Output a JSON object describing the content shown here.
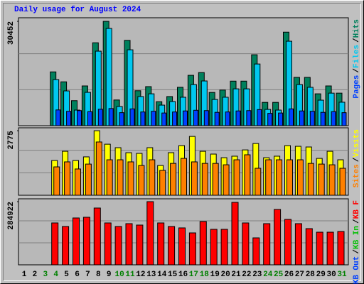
{
  "chart_data": [
    {
      "type": "bar",
      "title": "Daily usage for August 2024",
      "legend_separator": "/",
      "ylim": [
        0,
        31500
      ],
      "yticks": [
        30452
      ],
      "series": [
        {
          "name": "Hits",
          "color": "#00805c",
          "values": [
            null,
            null,
            null,
            15700,
            12800,
            7300,
            11600,
            24200,
            30452,
            7500,
            24900,
            10200,
            11400,
            7000,
            8500,
            11200,
            14700,
            15500,
            9700,
            10400,
            13000,
            13000,
            20700,
            6800,
            6800,
            27300,
            14100,
            14100,
            9300,
            11600,
            9500
          ]
        },
        {
          "name": "Files",
          "color": "#00c8f0",
          "values": [
            null,
            null,
            null,
            13450,
            10150,
            4550,
            9730,
            21750,
            28380,
            5600,
            22150,
            8500,
            9300,
            6000,
            7050,
            8300,
            12000,
            13050,
            7650,
            8300,
            10750,
            10750,
            18000,
            4750,
            4550,
            24650,
            12000,
            11200,
            7450,
            9500,
            6850
          ]
        },
        {
          "name": "Pages",
          "color": "#0040ff",
          "values": [
            null,
            null,
            null,
            4600,
            4200,
            4400,
            4100,
            4800,
            5000,
            3800,
            4900,
            4000,
            4200,
            3700,
            4000,
            4300,
            4500,
            4400,
            3900,
            4000,
            4300,
            4400,
            4700,
            3600,
            3700,
            4900,
            4300,
            4200,
            3900,
            4100,
            3800
          ]
        }
      ]
    },
    {
      "type": "bar",
      "legend_separator": "/",
      "ylim": [
        0,
        2900
      ],
      "yticks": [
        2775
      ],
      "series": [
        {
          "name": "Visits",
          "color": "#ffff00",
          "values": [
            null,
            null,
            null,
            1495,
            1890,
            1495,
            1650,
            2775,
            2195,
            2045,
            1830,
            1800,
            2045,
            1280,
            1830,
            2135,
            2530,
            1890,
            1770,
            1615,
            1680,
            1950,
            2225,
            1615,
            1680,
            2135,
            2105,
            2075,
            1585,
            1890,
            1525
          ]
        },
        {
          "name": "Sites",
          "color": "#ff8000",
          "values": [
            null,
            null,
            null,
            1220,
            1435,
            1130,
            1340,
            2290,
            1525,
            1525,
            1435,
            1280,
            1525,
            1070,
            1370,
            1585,
            1435,
            1370,
            1370,
            1310,
            1525,
            1740,
            1160,
            1525,
            1525,
            1525,
            1525,
            1370,
            1340,
            1310,
            1160
          ]
        }
      ]
    },
    {
      "type": "bar",
      "legend_separator": "/",
      "ylim": [
        0,
        297700
      ],
      "yticks": [
        284922
      ],
      "categories": [
        "1",
        "2",
        "3",
        "4",
        "5",
        "6",
        "7",
        "8",
        "9",
        "10",
        "11",
        "12",
        "13",
        "14",
        "15",
        "16",
        "17",
        "18",
        "19",
        "20",
        "21",
        "22",
        "23",
        "24",
        "25",
        "26",
        "27",
        "28",
        "29",
        "30",
        "31"
      ],
      "category_colors": [
        "#000000",
        "#000000",
        "#008000",
        "#008000",
        "#000000",
        "#000000",
        "#000000",
        "#000000",
        "#000000",
        "#008000",
        "#008000",
        "#000000",
        "#000000",
        "#000000",
        "#000000",
        "#000000",
        "#008000",
        "#008000",
        "#000000",
        "#000000",
        "#000000",
        "#000000",
        "#000000",
        "#008000",
        "#008000",
        "#000000",
        "#000000",
        "#000000",
        "#000000",
        "#000000",
        "#008000"
      ],
      "series": [
        {
          "name": "KB F",
          "color": "#ff0000",
          "values": [
            null,
            null,
            null,
            188900,
            172900,
            211300,
            214500,
            256100,
            188900,
            172900,
            185700,
            179300,
            284922,
            188900,
            172900,
            166500,
            144000,
            195300,
            160100,
            160100,
            281700,
            188900,
            121600,
            185700,
            249700,
            204900,
            185700,
            163300,
            147200,
            147200,
            150400
          ]
        },
        {
          "name": "KB In",
          "color": "#00c000",
          "values": [
            null,
            null,
            null,
            0,
            0,
            0,
            0,
            0,
            0,
            0,
            0,
            0,
            0,
            0,
            0,
            0,
            0,
            0,
            0,
            0,
            0,
            0,
            0,
            0,
            0,
            0,
            0,
            0,
            0,
            0,
            0
          ]
        },
        {
          "name": "KB Out",
          "color": "#0040ff",
          "values": [
            null,
            null,
            null,
            0,
            0,
            0,
            0,
            0,
            0,
            0,
            0,
            0,
            0,
            0,
            0,
            0,
            0,
            0,
            0,
            0,
            0,
            0,
            0,
            0,
            0,
            0,
            0,
            0,
            0,
            0,
            0
          ]
        }
      ]
    }
  ]
}
